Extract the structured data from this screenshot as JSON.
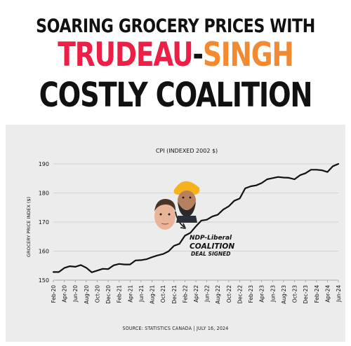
{
  "headline": {
    "line1": "SOARING GROCERY PRICES WITH",
    "trudeau": "TRUDEAU",
    "dash": "-",
    "singh": "SINGH",
    "line3": "COSTLY COALITION"
  },
  "annotation": {
    "line1": "NDP-Liberal",
    "line2": "COALITION",
    "line3": "DEAL SIGNED"
  },
  "source": "SOURCE: STATISTICS CANADA | JULY 16, 2024",
  "colors": {
    "line": "#111111",
    "grid": "#c8c8c8",
    "panel": "#ececec",
    "trudeau": "#ee1f47",
    "singh": "#f28a31"
  },
  "chart_data": {
    "type": "line",
    "title": "CPI (INDEXED 2002 $)",
    "ylabel": "GROCERY PRICE INDEX ($)",
    "xlabel": "",
    "ylim": [
      150,
      190
    ],
    "yticks": [
      150,
      160,
      170,
      180,
      190
    ],
    "grid": true,
    "x_ticks": [
      "Feb-20",
      "Apr-20",
      "Jun-20",
      "Aug-20",
      "Oct-20",
      "Dec-20",
      "Feb-21",
      "Apr-21",
      "Jun-21",
      "Aug-21",
      "Oct-21",
      "Dec-21",
      "Feb-22",
      "Apr-22",
      "Jun-22",
      "Aug-22",
      "Oct-22",
      "Dec-22",
      "Feb-23",
      "Apr-23",
      "Jun-23",
      "Aug-23",
      "Oct-23",
      "Dec-23",
      "Feb-24",
      "Apr-24",
      "Jun-24"
    ],
    "x": [
      "Feb-20",
      "Mar-20",
      "Apr-20",
      "May-20",
      "Jun-20",
      "Jul-20",
      "Aug-20",
      "Sep-20",
      "Oct-20",
      "Nov-20",
      "Dec-20",
      "Jan-21",
      "Feb-21",
      "Mar-21",
      "Apr-21",
      "May-21",
      "Jun-21",
      "Jul-21",
      "Aug-21",
      "Sep-21",
      "Oct-21",
      "Nov-21",
      "Dec-21",
      "Jan-22",
      "Feb-22",
      "Mar-22",
      "Apr-22",
      "May-22",
      "Jun-22",
      "Jul-22",
      "Aug-22",
      "Sep-22",
      "Oct-22",
      "Nov-22",
      "Dec-22",
      "Jan-23",
      "Feb-23",
      "Mar-23",
      "Apr-23",
      "May-23",
      "Jun-23",
      "Jul-23",
      "Aug-23",
      "Sep-23",
      "Oct-23",
      "Nov-23",
      "Dec-23",
      "Jan-24",
      "Feb-24",
      "Mar-24",
      "Apr-24",
      "May-24",
      "Jun-24"
    ],
    "values": [
      152.8,
      152.8,
      154.2,
      154.8,
      154.6,
      155.2,
      154.3,
      152.7,
      153.3,
      153.9,
      153.8,
      155.1,
      155.6,
      155.4,
      155.4,
      156.8,
      156.9,
      157.2,
      157.9,
      158.5,
      159.0,
      159.9,
      161.8,
      162.5,
      165.3,
      166.3,
      168.5,
      170.5,
      170.8,
      171.9,
      172.5,
      174.3,
      175.4,
      177.3,
      178.1,
      181.6,
      182.3,
      182.6,
      183.4,
      184.7,
      185.1,
      185.5,
      185.3,
      185.2,
      184.7,
      186.1,
      186.8,
      188.0,
      188.0,
      187.8,
      187.2,
      189.2,
      190.0
    ]
  }
}
